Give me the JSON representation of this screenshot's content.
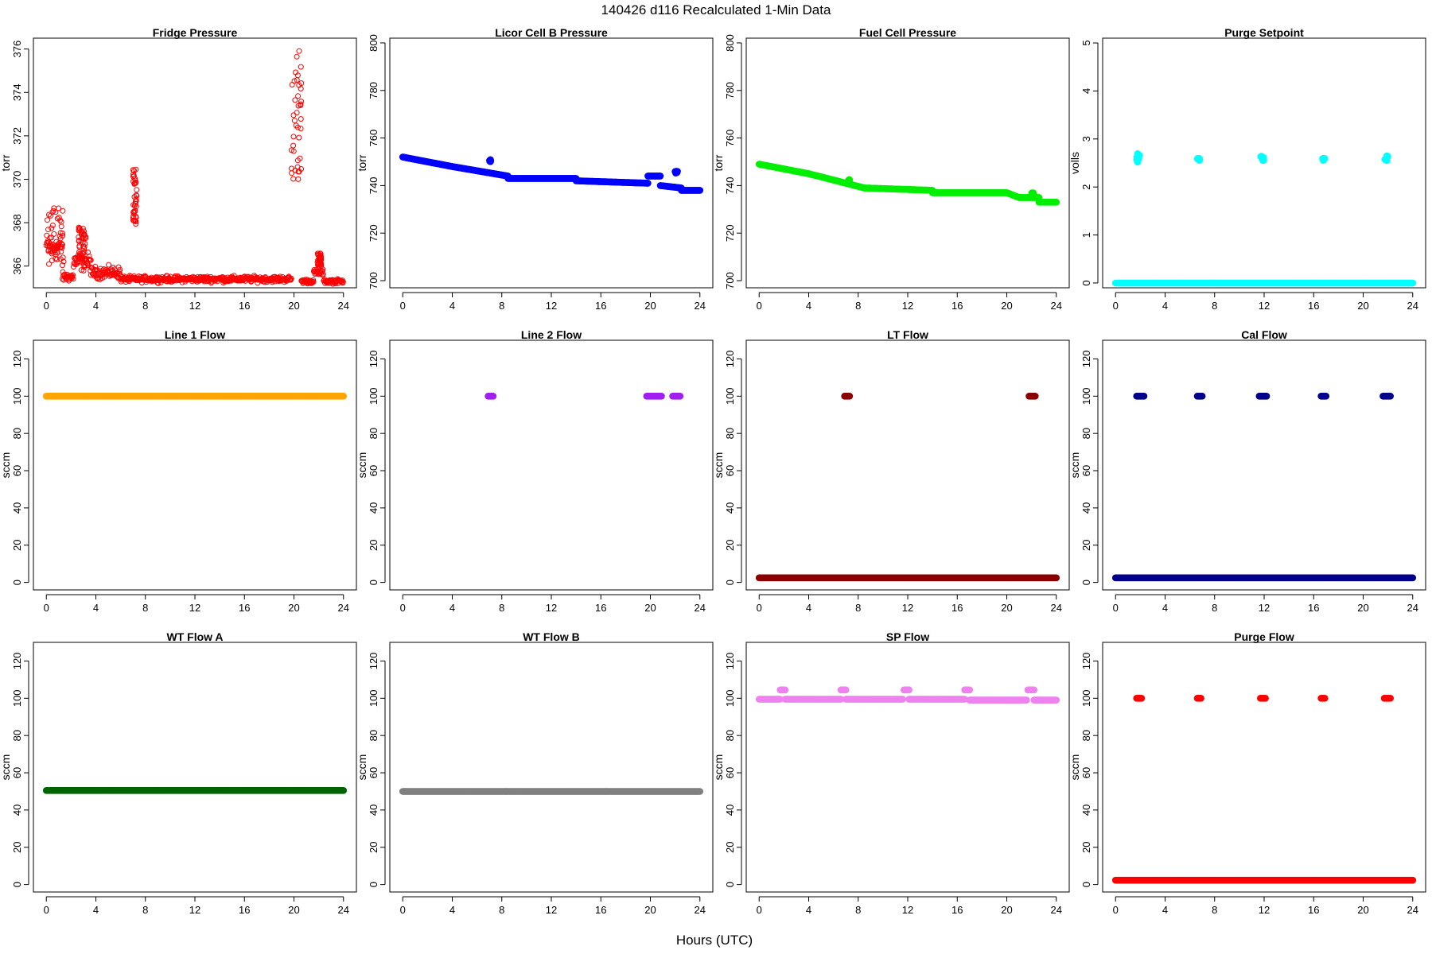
{
  "figure": {
    "title": "140426   d116   Recalculated 1-Min Data",
    "xlabel": "Hours (UTC)"
  },
  "chart_data": [
    {
      "type": "scatter",
      "title": "Fridge Pressure",
      "ylabel": "torr",
      "color": "#ff0000",
      "marker": "open",
      "xlim": [
        0,
        24
      ],
      "ylim": [
        365,
        376.5
      ],
      "xticks": [
        0,
        4,
        8,
        12,
        16,
        20,
        24
      ],
      "yticks": [
        366,
        368,
        370,
        372,
        374,
        376
      ],
      "segments": [
        {
          "x0": 0.0,
          "x1": 1.3,
          "y": 366.9,
          "spread": 0.9
        },
        {
          "x0": 1.3,
          "x1": 2.2,
          "y": 365.5,
          "spread": 0.3
        },
        {
          "x0": 2.2,
          "x1": 3.6,
          "y": 366.2,
          "spread": 0.6
        },
        {
          "x0": 3.6,
          "x1": 6.0,
          "y": 365.7,
          "spread": 0.4
        },
        {
          "x0": 6.0,
          "x1": 19.8,
          "y": 365.4,
          "spread": 0.2
        },
        {
          "x0": 20.6,
          "x1": 21.6,
          "y": 365.3,
          "spread": 0.15
        },
        {
          "x0": 21.6,
          "x1": 22.4,
          "y": 365.7,
          "spread": 0.2
        },
        {
          "x0": 22.4,
          "x1": 24.0,
          "y": 365.3,
          "spread": 0.15
        }
      ],
      "clusters": [
        {
          "x0": 7.0,
          "x1": 7.3,
          "ymin": 367.8,
          "ymax": 370.5
        },
        {
          "x0": 19.8,
          "x1": 20.6,
          "ymin": 370.0,
          "ymax": 376.0
        },
        {
          "x0": 0.0,
          "x1": 1.4,
          "ymin": 366.0,
          "ymax": 368.8
        },
        {
          "x0": 2.6,
          "x1": 3.2,
          "ymin": 366.2,
          "ymax": 367.8
        },
        {
          "x0": 21.9,
          "x1": 22.2,
          "ymin": 366.0,
          "ymax": 366.6
        }
      ]
    },
    {
      "type": "scatter",
      "title": "Licor Cell B Pressure",
      "ylabel": "torr",
      "color": "#0000ff",
      "marker": "filled",
      "xlim": [
        0,
        24
      ],
      "ylim": [
        697,
        802
      ],
      "xticks": [
        0,
        4,
        8,
        12,
        16,
        20,
        24
      ],
      "yticks": [
        700,
        720,
        740,
        760,
        780,
        800
      ],
      "segments": [
        {
          "x0": 0.0,
          "x1": 4.0,
          "y0": 752,
          "y1": 748
        },
        {
          "x0": 4.0,
          "x1": 8.5,
          "y0": 748,
          "y1": 744
        },
        {
          "x0": 8.5,
          "x1": 14.0,
          "y0": 743,
          "y1": 743
        },
        {
          "x0": 14.0,
          "x1": 19.8,
          "y0": 742,
          "y1": 741
        },
        {
          "x0": 19.8,
          "x1": 20.8,
          "y0": 744,
          "y1": 744
        },
        {
          "x0": 20.8,
          "x1": 22.5,
          "y0": 740,
          "y1": 739
        },
        {
          "x0": 22.5,
          "x1": 24.0,
          "y0": 738,
          "y1": 738
        }
      ],
      "clusters": [
        {
          "x0": 7.0,
          "x1": 7.1,
          "ymin": 750,
          "ymax": 751
        },
        {
          "x0": 22.0,
          "x1": 22.2,
          "ymin": 745,
          "ymax": 746
        }
      ]
    },
    {
      "type": "scatter",
      "title": "Fuel Cell Pressure",
      "ylabel": "torr",
      "color": "#00ee00",
      "marker": "filled",
      "xlim": [
        0,
        24
      ],
      "ylim": [
        697,
        802
      ],
      "xticks": [
        0,
        4,
        8,
        12,
        16,
        20,
        24
      ],
      "yticks": [
        700,
        720,
        740,
        760,
        780,
        800
      ],
      "segments": [
        {
          "x0": 0.0,
          "x1": 4.0,
          "y0": 749,
          "y1": 745
        },
        {
          "x0": 4.0,
          "x1": 8.5,
          "y0": 745,
          "y1": 739
        },
        {
          "x0": 8.5,
          "x1": 14.0,
          "y0": 739,
          "y1": 738
        },
        {
          "x0": 14.0,
          "x1": 20.0,
          "y0": 737,
          "y1": 737
        },
        {
          "x0": 20.0,
          "x1": 21.0,
          "y0": 737,
          "y1": 735
        },
        {
          "x0": 21.0,
          "x1": 22.6,
          "y0": 735,
          "y1": 735
        },
        {
          "x0": 22.6,
          "x1": 24.0,
          "y0": 733,
          "y1": 733
        }
      ],
      "clusters": [
        {
          "x0": 7.2,
          "x1": 7.3,
          "ymin": 742,
          "ymax": 742.5
        },
        {
          "x0": 22.0,
          "x1": 22.2,
          "ymin": 736,
          "ymax": 737
        }
      ]
    },
    {
      "type": "scatter",
      "title": "Purge Setpoint",
      "ylabel": "volls",
      "color": "#00ffff",
      "marker": "filled",
      "xlim": [
        0,
        24
      ],
      "ylim": [
        -0.1,
        5.1
      ],
      "xticks": [
        0,
        4,
        8,
        12,
        16,
        20,
        24
      ],
      "yticks": [
        0,
        1,
        2,
        3,
        4,
        5
      ],
      "segments": [
        {
          "x0": 0.0,
          "x1": 24.0,
          "y0": 0,
          "y1": 0
        }
      ],
      "clusters": [
        {
          "x0": 1.7,
          "x1": 2.0,
          "ymin": 2.5,
          "ymax": 2.7
        },
        {
          "x0": 6.6,
          "x1": 6.8,
          "ymin": 2.55,
          "ymax": 2.6
        },
        {
          "x0": 11.7,
          "x1": 12.0,
          "ymin": 2.55,
          "ymax": 2.65
        },
        {
          "x0": 16.7,
          "x1": 16.9,
          "ymin": 2.55,
          "ymax": 2.6
        },
        {
          "x0": 21.7,
          "x1": 22.0,
          "ymin": 2.55,
          "ymax": 2.65
        }
      ]
    },
    {
      "type": "scatter",
      "title": "Line 1 Flow",
      "ylabel": "sccm",
      "color": "#ffa500",
      "marker": "filled",
      "xlim": [
        0,
        24
      ],
      "ylim": [
        -4,
        130
      ],
      "xticks": [
        0,
        4,
        8,
        12,
        16,
        20,
        24
      ],
      "yticks": [
        0,
        20,
        40,
        60,
        80,
        100,
        120
      ],
      "segments": [
        {
          "x0": 0.0,
          "x1": 24.0,
          "y0": 100,
          "y1": 100
        }
      ],
      "clusters": []
    },
    {
      "type": "scatter",
      "title": "Line 2 Flow",
      "ylabel": "sccm",
      "color": "#a020f0",
      "marker": "filled",
      "xlim": [
        0,
        24
      ],
      "ylim": [
        -4,
        130
      ],
      "xticks": [
        0,
        4,
        8,
        12,
        16,
        20,
        24
      ],
      "yticks": [
        0,
        20,
        40,
        60,
        80,
        100,
        120
      ],
      "segments": [
        {
          "x0": 6.9,
          "x1": 7.3,
          "y0": 100,
          "y1": 100
        },
        {
          "x0": 19.7,
          "x1": 20.9,
          "y0": 100,
          "y1": 100
        },
        {
          "x0": 21.8,
          "x1": 22.4,
          "y0": 100,
          "y1": 100
        }
      ],
      "clusters": []
    },
    {
      "type": "scatter",
      "title": "LT Flow",
      "ylabel": "sccm",
      "color": "#8b0000",
      "marker": "filled",
      "xlim": [
        0,
        24
      ],
      "ylim": [
        -4,
        130
      ],
      "xticks": [
        0,
        4,
        8,
        12,
        16,
        20,
        24
      ],
      "yticks": [
        0,
        20,
        40,
        60,
        80,
        100,
        120
      ],
      "segments": [
        {
          "x0": 0.0,
          "x1": 24.0,
          "y0": 2.5,
          "y1": 2.5
        },
        {
          "x0": 6.9,
          "x1": 7.3,
          "y0": 100,
          "y1": 100
        },
        {
          "x0": 21.8,
          "x1": 22.3,
          "y0": 100,
          "y1": 100
        }
      ],
      "clusters": []
    },
    {
      "type": "scatter",
      "title": "Cal Flow",
      "ylabel": "sccm",
      "color": "#00008b",
      "marker": "filled",
      "xlim": [
        0,
        24
      ],
      "ylim": [
        -4,
        130
      ],
      "xticks": [
        0,
        4,
        8,
        12,
        16,
        20,
        24
      ],
      "yticks": [
        0,
        20,
        40,
        60,
        80,
        100,
        120
      ],
      "segments": [
        {
          "x0": 0.0,
          "x1": 24.0,
          "y0": 2.5,
          "y1": 2.5
        },
        {
          "x0": 1.7,
          "x1": 2.3,
          "y0": 100,
          "y1": 100
        },
        {
          "x0": 6.6,
          "x1": 7.0,
          "y0": 100,
          "y1": 100
        },
        {
          "x0": 11.6,
          "x1": 12.2,
          "y0": 100,
          "y1": 100
        },
        {
          "x0": 16.6,
          "x1": 17.0,
          "y0": 100,
          "y1": 100
        },
        {
          "x0": 21.6,
          "x1": 22.2,
          "y0": 100,
          "y1": 100
        }
      ],
      "clusters": []
    },
    {
      "type": "scatter",
      "title": "WT Flow A",
      "ylabel": "sccm",
      "color": "#006400",
      "marker": "filled",
      "xlim": [
        0,
        24
      ],
      "ylim": [
        -4,
        130
      ],
      "xticks": [
        0,
        4,
        8,
        12,
        16,
        20,
        24
      ],
      "yticks": [
        0,
        20,
        40,
        60,
        80,
        100,
        120
      ],
      "segments": [
        {
          "x0": 0.0,
          "x1": 24.0,
          "y0": 50.5,
          "y1": 50.5
        }
      ],
      "clusters": []
    },
    {
      "type": "scatter",
      "title": "WT Flow B",
      "ylabel": "sccm",
      "color": "#808080",
      "marker": "filled",
      "xlim": [
        0,
        24
      ],
      "ylim": [
        -4,
        130
      ],
      "xticks": [
        0,
        4,
        8,
        12,
        16,
        20,
        24
      ],
      "yticks": [
        0,
        20,
        40,
        60,
        80,
        100,
        120
      ],
      "segments": [
        {
          "x0": 0.0,
          "x1": 24.0,
          "y0": 50,
          "y1": 50
        }
      ],
      "clusters": []
    },
    {
      "type": "scatter",
      "title": "SP Flow",
      "ylabel": "sccm",
      "color": "#ee82ee",
      "marker": "filled",
      "xlim": [
        0,
        24
      ],
      "ylim": [
        -4,
        130
      ],
      "xticks": [
        0,
        4,
        8,
        12,
        16,
        20,
        24
      ],
      "yticks": [
        0,
        20,
        40,
        60,
        80,
        100,
        120
      ],
      "segments": [
        {
          "x0": 0.0,
          "x1": 1.7,
          "y0": 99.5,
          "y1": 99.5
        },
        {
          "x0": 2.1,
          "x1": 6.6,
          "y0": 99.5,
          "y1": 99.5
        },
        {
          "x0": 7.0,
          "x1": 11.6,
          "y0": 99.5,
          "y1": 99.5
        },
        {
          "x0": 12.1,
          "x1": 16.6,
          "y0": 99.5,
          "y1": 99.5
        },
        {
          "x0": 17.0,
          "x1": 21.6,
          "y0": 99.0,
          "y1": 99.0
        },
        {
          "x0": 22.2,
          "x1": 24.0,
          "y0": 99.0,
          "y1": 99.0
        },
        {
          "x0": 1.7,
          "x1": 2.1,
          "y0": 104.5,
          "y1": 104.5
        },
        {
          "x0": 6.6,
          "x1": 7.0,
          "y0": 104.5,
          "y1": 104.5
        },
        {
          "x0": 11.7,
          "x1": 12.1,
          "y0": 104.5,
          "y1": 104.5
        },
        {
          "x0": 16.6,
          "x1": 17.0,
          "y0": 104.5,
          "y1": 104.5
        },
        {
          "x0": 21.7,
          "x1": 22.2,
          "y0": 104.5,
          "y1": 104.5
        }
      ],
      "clusters": []
    },
    {
      "type": "scatter",
      "title": "Purge Flow",
      "ylabel": "sccm",
      "color": "#ff0000",
      "marker": "filled",
      "xlim": [
        0,
        24
      ],
      "ylim": [
        -4,
        130
      ],
      "xticks": [
        0,
        4,
        8,
        12,
        16,
        20,
        24
      ],
      "yticks": [
        0,
        20,
        40,
        60,
        80,
        100,
        120
      ],
      "segments": [
        {
          "x0": 0.0,
          "x1": 24.0,
          "y0": 2.3,
          "y1": 2.3
        },
        {
          "x0": 1.7,
          "x1": 2.1,
          "y0": 100,
          "y1": 100
        },
        {
          "x0": 6.6,
          "x1": 6.9,
          "y0": 100,
          "y1": 100
        },
        {
          "x0": 11.7,
          "x1": 12.1,
          "y0": 100,
          "y1": 100
        },
        {
          "x0": 16.6,
          "x1": 16.9,
          "y0": 100,
          "y1": 100
        },
        {
          "x0": 21.7,
          "x1": 22.2,
          "y0": 100,
          "y1": 100
        }
      ],
      "clusters": []
    }
  ]
}
